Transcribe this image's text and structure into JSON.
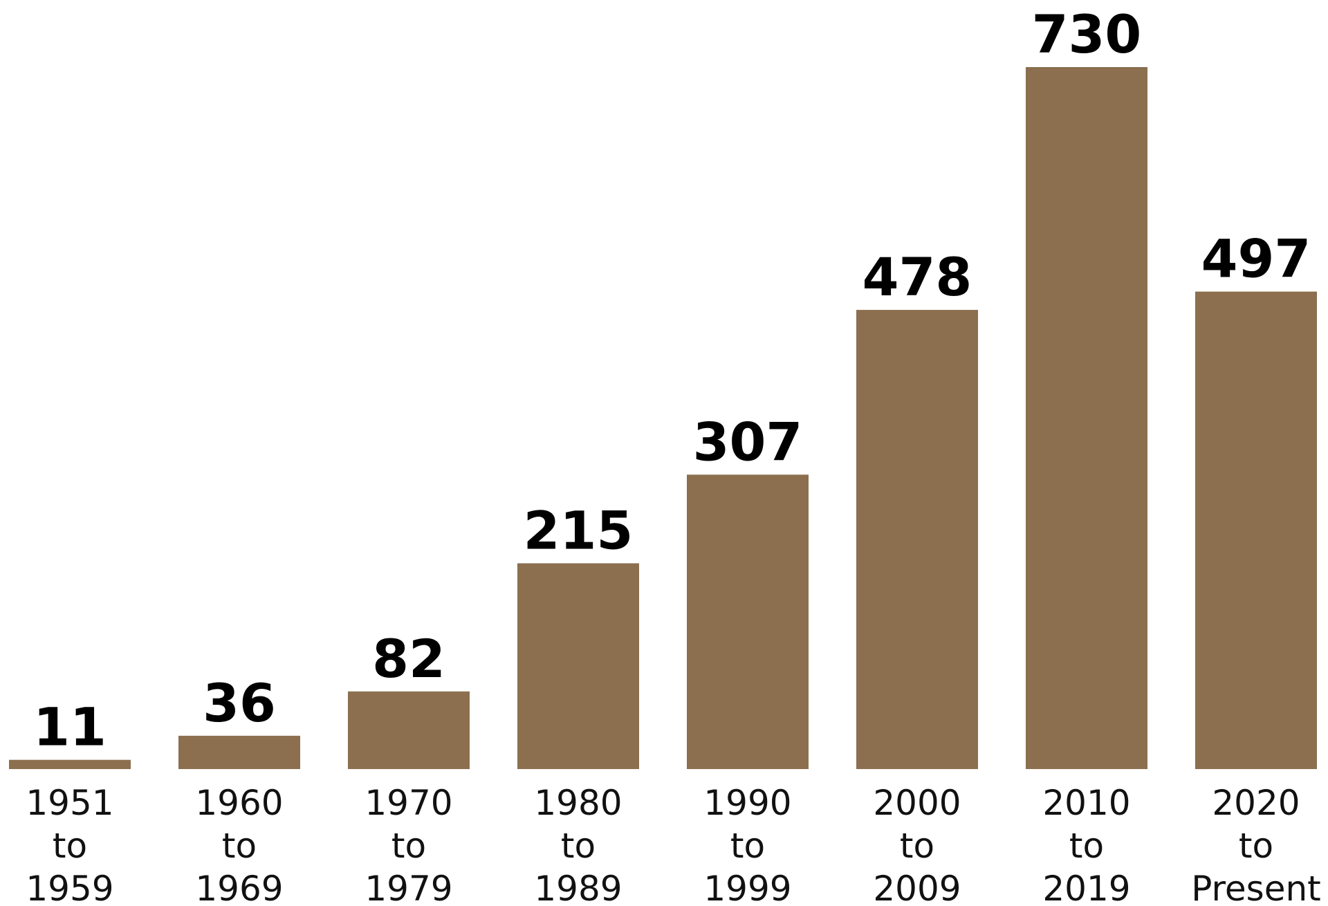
{
  "chart_data": {
    "type": "bar",
    "title": "",
    "xlabel": "",
    "ylabel": "",
    "categories": [
      [
        "1951",
        "to",
        "1959"
      ],
      [
        "1960",
        "to",
        "1969"
      ],
      [
        "1970",
        "to",
        "1979"
      ],
      [
        "1980",
        "to",
        "1989"
      ],
      [
        "1990",
        "to",
        "1999"
      ],
      [
        "2000",
        "to",
        "2009"
      ],
      [
        "2010",
        "to",
        "2019"
      ],
      [
        "2020",
        "to",
        "Present"
      ]
    ],
    "values": [
      11,
      36,
      82,
      215,
      307,
      478,
      730,
      497
    ],
    "ylim": [
      0,
      730
    ],
    "grid": false,
    "legend": "none",
    "colors": {
      "bar": "#8B6F4E",
      "value_label": "#000000",
      "tick_label": "#111111"
    }
  }
}
